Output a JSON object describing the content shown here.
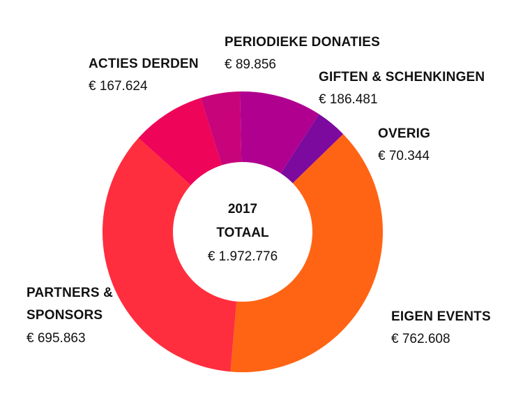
{
  "chart_data": {
    "type": "pie",
    "year": "2017",
    "total_label": "TOTAAL",
    "total_value": "€ 1.972.776",
    "slices": [
      {
        "name": "OVERIG",
        "value_label": "€ 70.344",
        "value": 70344,
        "color": "#7c0a9e"
      },
      {
        "name": "EIGEN EVENTS",
        "value_label": "€ 762.608",
        "value": 762608,
        "color": "#ff6414"
      },
      {
        "name": "PARTNERS &\nSPONSORS",
        "value_label": "€ 695.863",
        "value": 695863,
        "color": "#ff2e3e"
      },
      {
        "name": "ACTIES DERDEN",
        "value_label": "€ 167.624",
        "value": 167624,
        "color": "#ee0458"
      },
      {
        "name": "PERIODIEKE DONATIES",
        "value_label": "€ 89.856",
        "value": 89856,
        "color": "#c8047a"
      },
      {
        "name": "GIFTEN & SCHENKINGEN",
        "value_label": "€ 186.481",
        "value": 186481,
        "color": "#b00090"
      }
    ]
  }
}
